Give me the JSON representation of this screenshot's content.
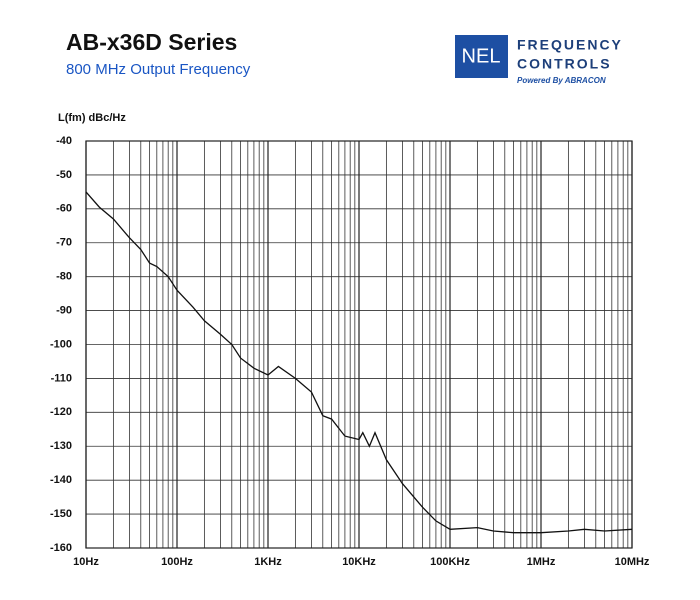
{
  "logo": {
    "badge": "NEL",
    "line1": "FREQUENCY",
    "line2": "CONTROLS",
    "tagline": "Powered By ABRACON"
  },
  "chart_data": {
    "type": "line",
    "title": "AB-x36D Series",
    "subtitle": "800 MHz Output Frequency",
    "y_label": "L(fm) dBc/Hz",
    "log_x": true,
    "grid": true,
    "xlim": [
      10,
      10000000
    ],
    "ylim": [
      -160,
      -40
    ],
    "xticks": [
      {
        "value": 10,
        "label": "10Hz"
      },
      {
        "value": 100,
        "label": "100Hz"
      },
      {
        "value": 1000,
        "label": "1KHz"
      },
      {
        "value": 10000,
        "label": "10KHz"
      },
      {
        "value": 100000,
        "label": "100KHz"
      },
      {
        "value": 1000000,
        "label": "1MHz"
      },
      {
        "value": 10000000,
        "label": "10MHz"
      }
    ],
    "x_minor_ticks": [
      20,
      30,
      40,
      50,
      60,
      70,
      80,
      90,
      200,
      300,
      400,
      500,
      600,
      700,
      800,
      900,
      2000,
      3000,
      4000,
      5000,
      6000,
      7000,
      8000,
      9000,
      20000,
      30000,
      40000,
      50000,
      60000,
      70000,
      80000,
      90000,
      200000,
      300000,
      400000,
      500000,
      600000,
      700000,
      800000,
      900000,
      2000000,
      3000000,
      4000000,
      5000000,
      6000000,
      7000000,
      8000000,
      9000000
    ],
    "yticks": [
      -40,
      -50,
      -60,
      -70,
      -80,
      -90,
      -100,
      -110,
      -120,
      -130,
      -140,
      -150,
      -160
    ],
    "series": [
      {
        "name": "L(fm)",
        "color": "#111111",
        "x": [
          10,
          14,
          20,
          30,
          40,
          50,
          60,
          80,
          100,
          150,
          200,
          300,
          400,
          500,
          700,
          1000,
          1300,
          2000,
          3000,
          4000,
          5000,
          7000,
          10000,
          11000,
          13000,
          15000,
          20000,
          30000,
          50000,
          70000,
          100000,
          200000,
          300000,
          500000,
          1000000,
          2000000,
          3000000,
          5000000,
          10000000
        ],
        "values": [
          -55,
          -59.5,
          -63,
          -68.5,
          -72,
          -76,
          -77,
          -80,
          -84,
          -89,
          -93,
          -97,
          -100,
          -104,
          -107,
          -109,
          -106.5,
          -110,
          -114,
          -121,
          -122,
          -127,
          -128,
          -126,
          -130,
          -126,
          -134,
          -141,
          -148,
          -152,
          -154.5,
          -154,
          -155,
          -155.5,
          -155.5,
          -155,
          -154.5,
          -155,
          -154.5
        ]
      }
    ]
  }
}
